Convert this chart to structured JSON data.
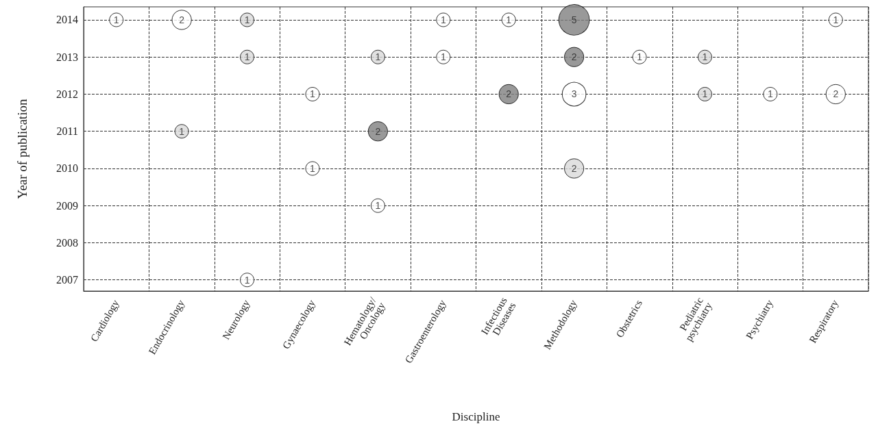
{
  "chart_data": {
    "type": "bubble",
    "xlabel": "Discipline",
    "ylabel": "Year of publication",
    "categories": [
      "Cardiology",
      "Endocrinology",
      "Neurology",
      "Gynaecology",
      "Hematology/\nOncology",
      "Gastroenterology",
      "Infectious\nDiseases",
      "Methodology",
      "Obstetrics",
      "Pediatric\npsychiatry",
      "Psychiatry",
      "Respiratory"
    ],
    "ylim": [
      2006.7,
      2014.35
    ],
    "yticks": [
      2007,
      2008,
      2009,
      2010,
      2011,
      2012,
      2013,
      2014
    ],
    "grid": true,
    "marker": "circle",
    "line_style": "dashed",
    "series": [
      {
        "color": "#ffffff",
        "x": [
          "Cardiology",
          "Endocrinology",
          "Gastroenterology",
          "Gastroenterology",
          "Infectious\nDiseases",
          "Respiratory",
          "Gynaecology",
          "Methodology",
          "Obstetrics",
          "Psychiatry",
          "Respiratory",
          "Gynaecology",
          "Hematology/\nOncology",
          "Neurology"
        ],
        "values": [
          2014,
          2014,
          2014,
          2013,
          2014,
          2014,
          2012,
          2012,
          2013,
          2012,
          2012,
          2010,
          2009,
          2007
        ],
        "sizes": [
          1,
          2,
          1,
          1,
          1,
          1,
          1,
          3,
          1,
          1,
          2,
          1,
          1,
          1
        ],
        "value_labels": [
          "1",
          "2",
          "1",
          "1",
          "1",
          "1",
          "1",
          "3",
          "1",
          "1",
          "2",
          "1",
          "1",
          "1"
        ]
      },
      {
        "color": "#d9d9d9",
        "x": [
          "Neurology",
          "Neurology",
          "Hematology/\nOncology",
          "Pediatric\npsychiatry",
          "Pediatric\npsychiatry",
          "Endocrinology",
          "Methodology"
        ],
        "values": [
          2014,
          2013,
          2013,
          2013,
          2012,
          2011,
          2010
        ],
        "sizes": [
          1,
          1,
          1,
          1,
          1,
          1,
          2
        ],
        "value_labels": [
          "1",
          "1",
          "1",
          "1",
          "1",
          "1",
          "2"
        ]
      },
      {
        "color": "#808080",
        "x": [
          "Methodology",
          "Methodology",
          "Infectious\nDiseases",
          "Hematology/\nOncology"
        ],
        "values": [
          2014,
          2013,
          2012,
          2011
        ],
        "sizes": [
          5,
          2,
          2,
          2
        ],
        "value_labels": [
          "5",
          "2",
          "2",
          "2"
        ]
      }
    ]
  }
}
